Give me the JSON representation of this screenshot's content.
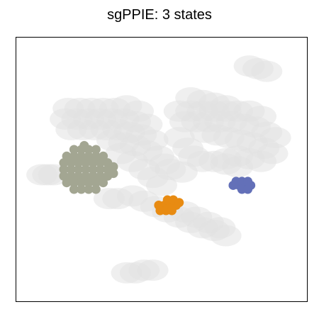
{
  "chart_data": {
    "type": "scatter",
    "title": "sgPPIE: 3 states",
    "xlabel": "",
    "ylabel": "",
    "grid": false,
    "legend": "none",
    "background_color": "#e2e2e2",
    "series": [
      {
        "color": "#a3a692",
        "points": [
          [
            0.165,
            0.5
          ],
          [
            0.19,
            0.5
          ],
          [
            0.215,
            0.5
          ],
          [
            0.24,
            0.5
          ],
          [
            0.265,
            0.5
          ],
          [
            0.29,
            0.5
          ],
          [
            0.315,
            0.5
          ],
          [
            0.165,
            0.475
          ],
          [
            0.19,
            0.475
          ],
          [
            0.215,
            0.475
          ],
          [
            0.24,
            0.475
          ],
          [
            0.265,
            0.475
          ],
          [
            0.29,
            0.475
          ],
          [
            0.315,
            0.475
          ],
          [
            0.165,
            0.525
          ],
          [
            0.19,
            0.525
          ],
          [
            0.215,
            0.525
          ],
          [
            0.24,
            0.525
          ],
          [
            0.265,
            0.525
          ],
          [
            0.29,
            0.525
          ],
          [
            0.315,
            0.525
          ],
          [
            0.175,
            0.45
          ],
          [
            0.2,
            0.45
          ],
          [
            0.225,
            0.45
          ],
          [
            0.25,
            0.45
          ],
          [
            0.275,
            0.45
          ],
          [
            0.3,
            0.45
          ],
          [
            0.175,
            0.55
          ],
          [
            0.2,
            0.55
          ],
          [
            0.225,
            0.55
          ],
          [
            0.25,
            0.55
          ],
          [
            0.275,
            0.55
          ],
          [
            0.3,
            0.55
          ],
          [
            0.2,
            0.425
          ],
          [
            0.225,
            0.425
          ],
          [
            0.25,
            0.425
          ],
          [
            0.275,
            0.425
          ],
          [
            0.2,
            0.575
          ],
          [
            0.225,
            0.575
          ],
          [
            0.25,
            0.575
          ],
          [
            0.275,
            0.575
          ],
          [
            0.235,
            0.41
          ],
          [
            0.335,
            0.49
          ],
          [
            0.335,
            0.515
          ]
        ]
      },
      {
        "color": "#e88b12",
        "points": [
          [
            0.49,
            0.635
          ],
          [
            0.51,
            0.635
          ],
          [
            0.53,
            0.635
          ],
          [
            0.55,
            0.635
          ],
          [
            0.495,
            0.655
          ],
          [
            0.515,
            0.655
          ],
          [
            0.535,
            0.655
          ],
          [
            0.52,
            0.615
          ],
          [
            0.54,
            0.615
          ],
          [
            0.56,
            0.625
          ]
        ]
      },
      {
        "color": "#6370b8",
        "points": [
          [
            0.745,
            0.56
          ],
          [
            0.765,
            0.56
          ],
          [
            0.785,
            0.56
          ],
          [
            0.805,
            0.56
          ],
          [
            0.755,
            0.545
          ],
          [
            0.775,
            0.545
          ],
          [
            0.795,
            0.545
          ],
          [
            0.775,
            0.575
          ],
          [
            0.795,
            0.575
          ]
        ]
      }
    ],
    "background_points": [
      [
        0.18,
        0.27
      ],
      [
        0.22,
        0.27
      ],
      [
        0.26,
        0.27
      ],
      [
        0.3,
        0.27
      ],
      [
        0.34,
        0.27
      ],
      [
        0.38,
        0.26
      ],
      [
        0.42,
        0.28
      ],
      [
        0.17,
        0.31
      ],
      [
        0.21,
        0.31
      ],
      [
        0.25,
        0.31
      ],
      [
        0.29,
        0.31
      ],
      [
        0.33,
        0.31
      ],
      [
        0.37,
        0.31
      ],
      [
        0.41,
        0.32
      ],
      [
        0.45,
        0.33
      ],
      [
        0.19,
        0.35
      ],
      [
        0.23,
        0.35
      ],
      [
        0.27,
        0.35
      ],
      [
        0.31,
        0.35
      ],
      [
        0.35,
        0.35
      ],
      [
        0.39,
        0.36
      ],
      [
        0.43,
        0.37
      ],
      [
        0.47,
        0.39
      ],
      [
        0.33,
        0.39
      ],
      [
        0.37,
        0.4
      ],
      [
        0.41,
        0.41
      ],
      [
        0.45,
        0.43
      ],
      [
        0.49,
        0.45
      ],
      [
        0.51,
        0.48
      ],
      [
        0.36,
        0.44
      ],
      [
        0.4,
        0.47
      ],
      [
        0.44,
        0.5
      ],
      [
        0.47,
        0.53
      ],
      [
        0.5,
        0.56
      ],
      [
        0.4,
        0.6
      ],
      [
        0.44,
        0.62
      ],
      [
        0.48,
        0.64
      ],
      [
        0.52,
        0.66
      ],
      [
        0.56,
        0.68
      ],
      [
        0.6,
        0.7
      ],
      [
        0.64,
        0.72
      ],
      [
        0.68,
        0.73
      ],
      [
        0.72,
        0.75
      ],
      [
        0.58,
        0.66
      ],
      [
        0.62,
        0.68
      ],
      [
        0.66,
        0.7
      ],
      [
        0.7,
        0.72
      ],
      [
        0.09,
        0.52
      ],
      [
        0.11,
        0.52
      ],
      [
        0.13,
        0.52
      ],
      [
        0.32,
        0.61
      ],
      [
        0.35,
        0.61
      ],
      [
        0.53,
        0.5
      ],
      [
        0.57,
        0.51
      ],
      [
        0.56,
        0.28
      ],
      [
        0.6,
        0.28
      ],
      [
        0.64,
        0.28
      ],
      [
        0.68,
        0.28
      ],
      [
        0.72,
        0.28
      ],
      [
        0.76,
        0.28
      ],
      [
        0.8,
        0.28
      ],
      [
        0.84,
        0.3
      ],
      [
        0.58,
        0.32
      ],
      [
        0.62,
        0.32
      ],
      [
        0.66,
        0.32
      ],
      [
        0.7,
        0.32
      ],
      [
        0.74,
        0.32
      ],
      [
        0.78,
        0.33
      ],
      [
        0.82,
        0.34
      ],
      [
        0.86,
        0.36
      ],
      [
        0.89,
        0.38
      ],
      [
        0.65,
        0.36
      ],
      [
        0.69,
        0.37
      ],
      [
        0.73,
        0.38
      ],
      [
        0.77,
        0.39
      ],
      [
        0.81,
        0.4
      ],
      [
        0.85,
        0.42
      ],
      [
        0.88,
        0.44
      ],
      [
        0.56,
        0.38
      ],
      [
        0.59,
        0.42
      ],
      [
        0.61,
        0.45
      ],
      [
        0.64,
        0.47
      ],
      [
        0.68,
        0.47
      ],
      [
        0.72,
        0.46
      ],
      [
        0.76,
        0.45
      ],
      [
        0.8,
        0.46
      ],
      [
        0.84,
        0.47
      ],
      [
        0.6,
        0.23
      ],
      [
        0.64,
        0.24
      ],
      [
        0.68,
        0.25
      ],
      [
        0.72,
        0.26
      ],
      [
        0.8,
        0.11
      ],
      [
        0.83,
        0.12
      ],
      [
        0.86,
        0.13
      ],
      [
        0.38,
        0.89
      ],
      [
        0.41,
        0.89
      ],
      [
        0.44,
        0.88
      ],
      [
        0.47,
        0.88
      ],
      [
        0.72,
        0.48
      ],
      [
        0.76,
        0.49
      ]
    ]
  }
}
